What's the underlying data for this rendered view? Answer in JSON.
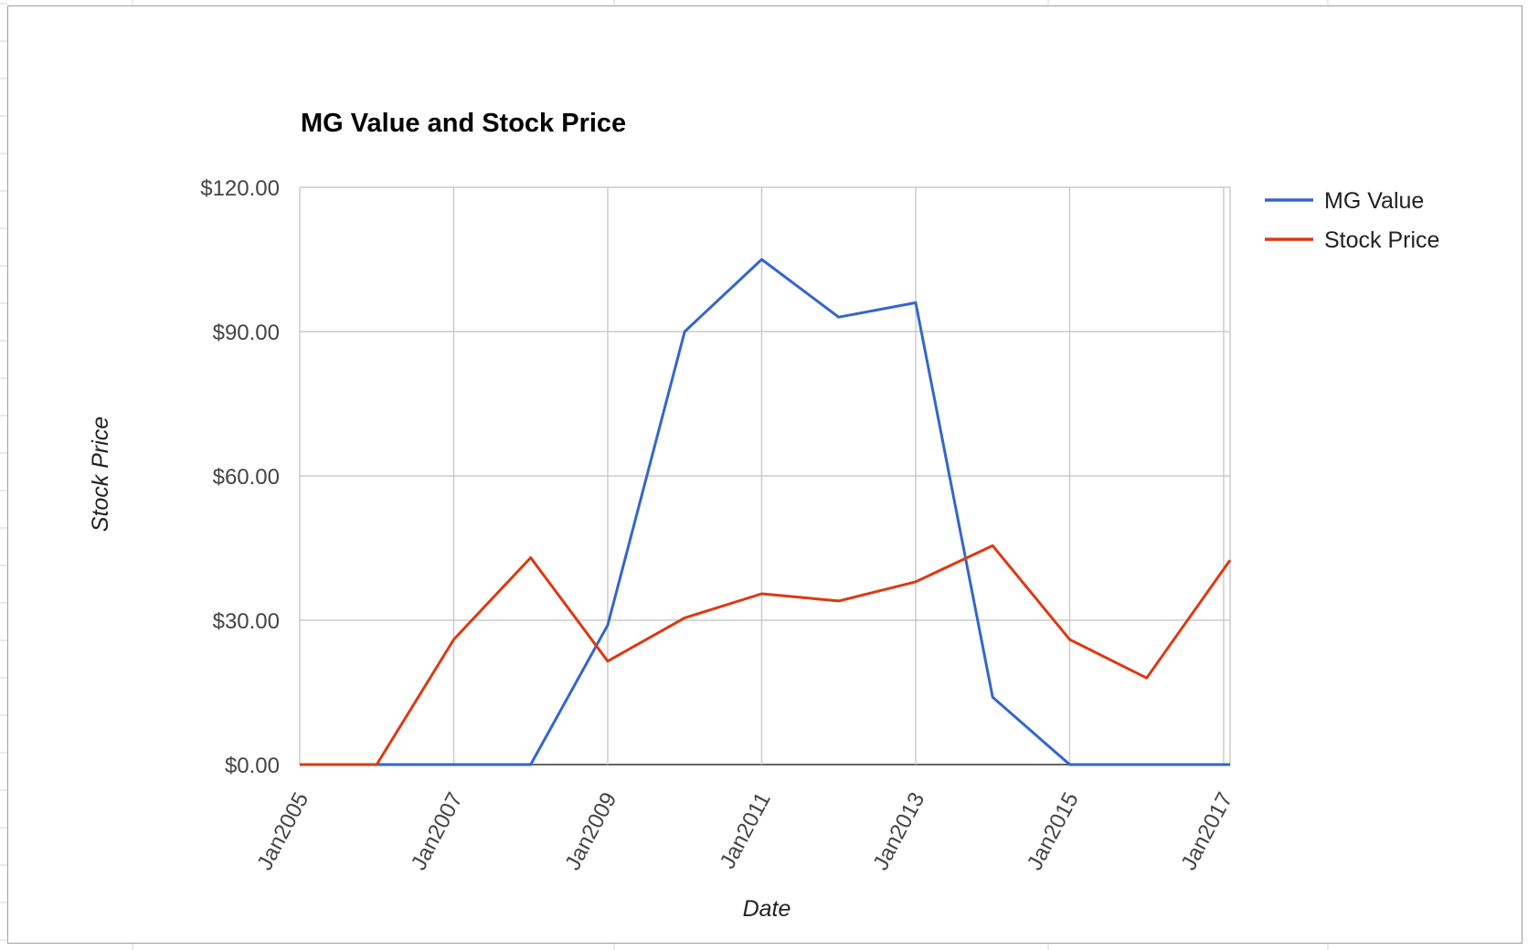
{
  "chart_data": {
    "type": "line",
    "title": "MG Value and Stock Price",
    "xlabel": "Date",
    "ylabel": "Stock Price",
    "x_ticks": [
      "Jan2005",
      "Jan2007",
      "Jan2009",
      "Jan2011",
      "Jan2013",
      "Jan2015",
      "Jan2017"
    ],
    "y_ticks": [
      "$0.00",
      "$30.00",
      "$60.00",
      "$90.00",
      "$120.00"
    ],
    "ylim": [
      0,
      120
    ],
    "xlim": [
      "2005-01",
      "2017-02"
    ],
    "grid": true,
    "legend_position": "right",
    "x": [
      "2005-01",
      "2006-01",
      "2007-01",
      "2008-01",
      "2009-01",
      "2010-01",
      "2011-01",
      "2012-01",
      "2013-01",
      "2014-01",
      "2015-01",
      "2016-01",
      "2017-02"
    ],
    "series": [
      {
        "name": "MG Value",
        "color": "#3366cc",
        "values": [
          0,
          0,
          0,
          0,
          29,
          90,
          105,
          93,
          96,
          14,
          0,
          0,
          0
        ]
      },
      {
        "name": "Stock Price",
        "color": "#dc3912",
        "values": [
          0,
          0,
          26,
          43,
          21.5,
          30.5,
          35.5,
          34,
          38,
          45.5,
          26,
          18,
          42.5
        ]
      }
    ]
  }
}
